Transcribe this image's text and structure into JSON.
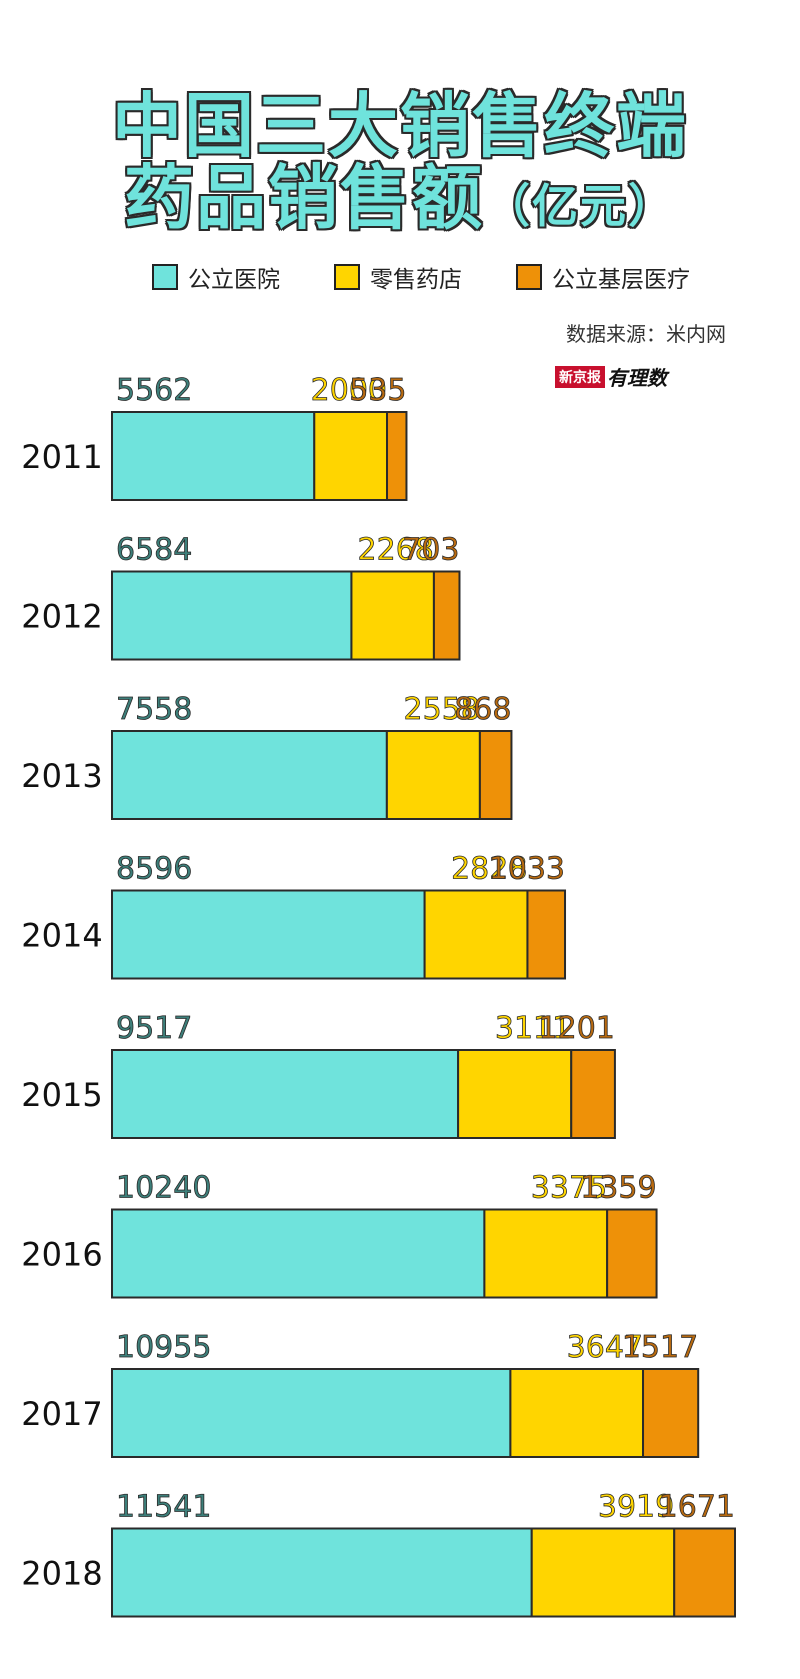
{
  "title": {
    "line1": "中国三大销售终端",
    "line2_main": "药品销售额",
    "line2_unit": "（亿元）"
  },
  "legend": [
    {
      "label": "公立医院",
      "color": "#6fe3dc"
    },
    {
      "label": "零售药店",
      "color": "#ffd500"
    },
    {
      "label": "公立基层医疗",
      "color": "#ee9108"
    }
  ],
  "source": "数据来源：米内网",
  "brand": {
    "box": "新京报",
    "script": "有理数"
  },
  "colors": {
    "public_hospital": "#6fe3dc",
    "retail": "#ffd500",
    "grassroots": "#ee9108",
    "outline": "#2a2a2a",
    "label_public": "#3d7f7a",
    "label_retail": "#ffd500",
    "label_grassroots": "#b86a10"
  },
  "chart_data": {
    "type": "bar",
    "orientation": "horizontal",
    "stacked": true,
    "categories": [
      "2011",
      "2012",
      "2013",
      "2014",
      "2015",
      "2016",
      "2017",
      "2018"
    ],
    "series": [
      {
        "name": "公立医院",
        "values": [
          5562,
          6584,
          7558,
          8596,
          9517,
          10240,
          10955,
          11541
        ]
      },
      {
        "name": "零售药店",
        "values": [
          2000,
          2268,
          2558,
          2828,
          3111,
          3375,
          3647,
          3919
        ]
      },
      {
        "name": "公立基层医疗",
        "values": [
          535,
          703,
          868,
          1033,
          1201,
          1359,
          1517,
          1671
        ]
      }
    ],
    "title": "中国三大销售终端药品销售额（亿元）",
    "xlabel": "",
    "ylabel": "",
    "xlim": [
      0,
      17131
    ],
    "grid": false,
    "legend": "top"
  }
}
